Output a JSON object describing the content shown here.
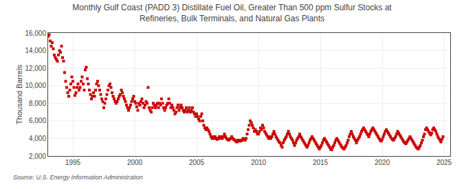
{
  "chart_data": {
    "type": "scatter",
    "title": "Monthly Gulf Coast (PADD 3) Distillate Fuel Oil, Greater Than 500 ppm Sulfur Stocks at\nRefineries, Bulk Terminals, and Natural Gas Plants",
    "ylabel": "Thousand Barrels",
    "source": "Source: U.S. Energy Information Administration",
    "color": "#cc0000",
    "marker": "square",
    "grid": true,
    "xlim": [
      1993.0,
      2025.5
    ],
    "xticks": [
      1995,
      2000,
      2005,
      2010,
      2015,
      2020,
      2025
    ],
    "ylim": [
      2000,
      16000
    ],
    "yticks": [
      {
        "value": 2000,
        "label": "2,000"
      },
      {
        "value": 4000,
        "label": "4,000"
      },
      {
        "value": 6000,
        "label": "6,000"
      },
      {
        "value": 8000,
        "label": "8,000"
      },
      {
        "value": 10000,
        "label": "10,000"
      },
      {
        "value": 12000,
        "label": "12,000"
      },
      {
        "value": 14000,
        "label": "14,000"
      },
      {
        "value": 16000,
        "label": "16,000"
      }
    ],
    "x": [
      1993.0,
      1993.083,
      1993.167,
      1993.25,
      1993.333,
      1993.417,
      1993.5,
      1993.583,
      1993.667,
      1993.75,
      1993.833,
      1993.917,
      1994.0,
      1994.083,
      1994.167,
      1994.25,
      1994.333,
      1994.417,
      1994.5,
      1994.583,
      1994.667,
      1994.75,
      1994.833,
      1994.917,
      1995.0,
      1995.083,
      1995.167,
      1995.25,
      1995.333,
      1995.417,
      1995.5,
      1995.583,
      1995.667,
      1995.75,
      1995.833,
      1995.917,
      1996.0,
      1996.083,
      1996.167,
      1996.25,
      1996.333,
      1996.417,
      1996.5,
      1996.583,
      1996.667,
      1996.75,
      1996.833,
      1996.917,
      1997.0,
      1997.083,
      1997.167,
      1997.25,
      1997.333,
      1997.417,
      1997.5,
      1997.583,
      1997.667,
      1997.75,
      1997.833,
      1997.917,
      1998.0,
      1998.083,
      1998.167,
      1998.25,
      1998.333,
      1998.417,
      1998.5,
      1998.583,
      1998.667,
      1998.75,
      1998.833,
      1998.917,
      1999.0,
      1999.083,
      1999.167,
      1999.25,
      1999.333,
      1999.417,
      1999.5,
      1999.583,
      1999.667,
      1999.75,
      1999.833,
      1999.917,
      2000.0,
      2000.083,
      2000.167,
      2000.25,
      2000.333,
      2000.417,
      2000.5,
      2000.583,
      2000.667,
      2000.75,
      2000.833,
      2000.917,
      2001.0,
      2001.083,
      2001.167,
      2001.25,
      2001.333,
      2001.417,
      2001.5,
      2001.583,
      2001.667,
      2001.75,
      2001.833,
      2001.917,
      2002.0,
      2002.083,
      2002.167,
      2002.25,
      2002.333,
      2002.417,
      2002.5,
      2002.583,
      2002.667,
      2002.75,
      2002.833,
      2002.917,
      2003.0,
      2003.083,
      2003.167,
      2003.25,
      2003.333,
      2003.417,
      2003.5,
      2003.583,
      2003.667,
      2003.75,
      2003.833,
      2003.917,
      2004.0,
      2004.083,
      2004.167,
      2004.25,
      2004.333,
      2004.417,
      2004.5,
      2004.583,
      2004.667,
      2004.75,
      2004.833,
      2004.917,
      2005.0,
      2005.083,
      2005.167,
      2005.25,
      2005.333,
      2005.417,
      2005.5,
      2005.583,
      2005.667,
      2005.75,
      2005.833,
      2005.917,
      2006.0,
      2006.083,
      2006.167,
      2006.25,
      2006.333,
      2006.417,
      2006.5,
      2006.583,
      2006.667,
      2006.75,
      2006.833,
      2006.917,
      2007.0,
      2007.083,
      2007.167,
      2007.25,
      2007.333,
      2007.417,
      2007.5,
      2007.583,
      2007.667,
      2007.75,
      2007.833,
      2007.917,
      2008.0,
      2008.083,
      2008.167,
      2008.25,
      2008.333,
      2008.417,
      2008.5,
      2008.583,
      2008.667,
      2008.75,
      2008.833,
      2008.917,
      2009.0,
      2009.083,
      2009.167,
      2009.25,
      2009.333,
      2009.417,
      2009.5,
      2009.583,
      2009.667,
      2009.75,
      2009.833,
      2009.917,
      2010.0,
      2010.083,
      2010.167,
      2010.25,
      2010.333,
      2010.417,
      2010.5,
      2010.583,
      2010.667,
      2010.75,
      2010.833,
      2010.917,
      2011.0,
      2011.083,
      2011.167,
      2011.25,
      2011.333,
      2011.417,
      2011.5,
      2011.583,
      2011.667,
      2011.75,
      2011.833,
      2011.917,
      2012.0,
      2012.083,
      2012.167,
      2012.25,
      2012.333,
      2012.417,
      2012.5,
      2012.583,
      2012.667,
      2012.75,
      2012.833,
      2012.917,
      2013.0,
      2013.083,
      2013.167,
      2013.25,
      2013.333,
      2013.417,
      2013.5,
      2013.583,
      2013.667,
      2013.75,
      2013.833,
      2013.917,
      2014.0,
      2014.083,
      2014.167,
      2014.25,
      2014.333,
      2014.417,
      2014.5,
      2014.583,
      2014.667,
      2014.75,
      2014.833,
      2014.917,
      2015.0,
      2015.083,
      2015.167,
      2015.25,
      2015.333,
      2015.417,
      2015.5,
      2015.583,
      2015.667,
      2015.75,
      2015.833,
      2015.917,
      2016.0,
      2016.083,
      2016.167,
      2016.25,
      2016.333,
      2016.417,
      2016.5,
      2016.583,
      2016.667,
      2016.75,
      2016.833,
      2016.917,
      2017.0,
      2017.083,
      2017.167,
      2017.25,
      2017.333,
      2017.417,
      2017.5,
      2017.583,
      2017.667,
      2017.75,
      2017.833,
      2017.917,
      2018.0,
      2018.083,
      2018.167,
      2018.25,
      2018.333,
      2018.417,
      2018.5,
      2018.583,
      2018.667,
      2018.75,
      2018.833,
      2018.917,
      2019.0,
      2019.083,
      2019.167,
      2019.25,
      2019.333,
      2019.417,
      2019.5,
      2019.583,
      2019.667,
      2019.75,
      2019.833,
      2019.917,
      2020.0,
      2020.083,
      2020.167,
      2020.25,
      2020.333,
      2020.417,
      2020.5,
      2020.583,
      2020.667,
      2020.75,
      2020.833,
      2020.917,
      2021.0,
      2021.083,
      2021.167,
      2021.25,
      2021.333,
      2021.417,
      2021.5,
      2021.583,
      2021.667,
      2021.75,
      2021.833,
      2021.917,
      2022.0,
      2022.083,
      2022.167,
      2022.25,
      2022.333,
      2022.417,
      2022.5,
      2022.583,
      2022.667,
      2022.75,
      2022.833,
      2022.917,
      2023.0,
      2023.083,
      2023.167,
      2023.25,
      2023.333,
      2023.417,
      2023.5,
      2023.583,
      2023.667,
      2023.75,
      2023.833,
      2023.917,
      2024.0,
      2024.083,
      2024.167,
      2024.25,
      2024.333,
      2024.417,
      2024.5,
      2024.583,
      2024.667,
      2024.75,
      2024.833,
      2024.917
    ],
    "values": [
      15600,
      15800,
      15100,
      14500,
      14900,
      14200,
      13500,
      13200,
      13000,
      12800,
      13500,
      14000,
      13800,
      14500,
      13200,
      12800,
      11500,
      10500,
      9800,
      9200,
      8800,
      9500,
      10200,
      11000,
      10500,
      9800,
      8900,
      9200,
      9800,
      10200,
      9500,
      9800,
      10500,
      11000,
      10200,
      9500,
      11800,
      12100,
      10800,
      10200,
      9500,
      9000,
      8500,
      8800,
      9200,
      8800,
      9500,
      10200,
      10500,
      10000,
      9500,
      9000,
      8500,
      8200,
      7500,
      8000,
      8500,
      9000,
      9500,
      10000,
      10200,
      9800,
      9200,
      8800,
      8500,
      8200,
      8000,
      8200,
      8500,
      8800,
      9000,
      9500,
      9200,
      8800,
      8500,
      8200,
      7800,
      7500,
      7200,
      7500,
      7800,
      8200,
      8500,
      8800,
      8200,
      8000,
      7600,
      7200,
      8000,
      7800,
      8200,
      8500,
      8000,
      7500,
      7800,
      8200,
      8000,
      9800,
      7500,
      7200,
      7000,
      7500,
      8000,
      7800,
      7500,
      7800,
      8000,
      7500,
      8000,
      7800,
      8500,
      8000,
      7500,
      7200,
      7500,
      7800,
      8000,
      8500,
      8000,
      7500,
      7800,
      7500,
      7200,
      6800,
      7000,
      7500,
      7800,
      7200,
      7500,
      7800,
      7500,
      7200,
      7000,
      7200,
      7500,
      7000,
      7200,
      7500,
      7000,
      7200,
      7500,
      7000,
      6800,
      6500,
      6800,
      6500,
      6200,
      6000,
      6500,
      6800,
      6000,
      5500,
      5200,
      5000,
      5200,
      5000,
      4800,
      4500,
      4200,
      4000,
      4200,
      4000,
      4200,
      4000,
      3900,
      4000,
      4200,
      4000,
      4200,
      4000,
      4200,
      4500,
      4200,
      4000,
      3900,
      3800,
      3900,
      4000,
      4200,
      4000,
      3900,
      3800,
      3700,
      3600,
      3800,
      3700,
      3800,
      3700,
      3800,
      4000,
      3900,
      3800,
      4000,
      4500,
      5000,
      5500,
      6000,
      5800,
      5500,
      5200,
      4800,
      5000,
      4800,
      4500,
      4500,
      4800,
      5200,
      5000,
      5500,
      5200,
      4800,
      4600,
      4400,
      4200,
      4000,
      4200,
      4000,
      4200,
      4500,
      4800,
      4500,
      4200,
      4000,
      3800,
      3600,
      3500,
      3200,
      3000,
      3500,
      3800,
      4000,
      4200,
      4500,
      4800,
      4500,
      4200,
      4000,
      3800,
      3500,
      3200,
      3500,
      3800,
      4000,
      4200,
      4500,
      4200,
      4000,
      3800,
      3600,
      3400,
      3200,
      3000,
      3200,
      3500,
      3800,
      4000,
      4200,
      4000,
      3800,
      3600,
      3400,
      3200,
      3000,
      2800,
      3000,
      3200,
      3500,
      3800,
      4000,
      3800,
      3600,
      3400,
      3200,
      3000,
      2800,
      2700,
      3000,
      3200,
      3500,
      3800,
      4000,
      3800,
      3600,
      3400,
      3200,
      3000,
      2900,
      2800,
      3000,
      3200,
      3500,
      3800,
      4200,
      4500,
      4800,
      4500,
      4200,
      4000,
      3800,
      3500,
      3800,
      4000,
      4200,
      4500,
      4800,
      5000,
      5200,
      5000,
      4800,
      4600,
      4400,
      4200,
      4500,
      4800,
      5000,
      5200,
      5000,
      4800,
      4600,
      4400,
      4200,
      4000,
      3800,
      3700,
      3900,
      4200,
      4500,
      4800,
      5000,
      4800,
      4600,
      4400,
      4200,
      4000,
      3900,
      3800,
      4000,
      4200,
      4500,
      4800,
      4600,
      4400,
      4200,
      4000,
      3800,
      3600,
      3500,
      3400,
      3600,
      3800,
      4000,
      4200,
      4000,
      3800,
      3600,
      3400,
      3200,
      3000,
      2900,
      2800,
      3000,
      3200,
      3500,
      3800,
      4200,
      4500,
      5000,
      5200,
      5000,
      4800,
      4600,
      4400,
      4600,
      5000,
      5200,
      5000,
      4800,
      4500,
      4200,
      4000,
      3800,
      3600,
      3900,
      4200
    ]
  }
}
